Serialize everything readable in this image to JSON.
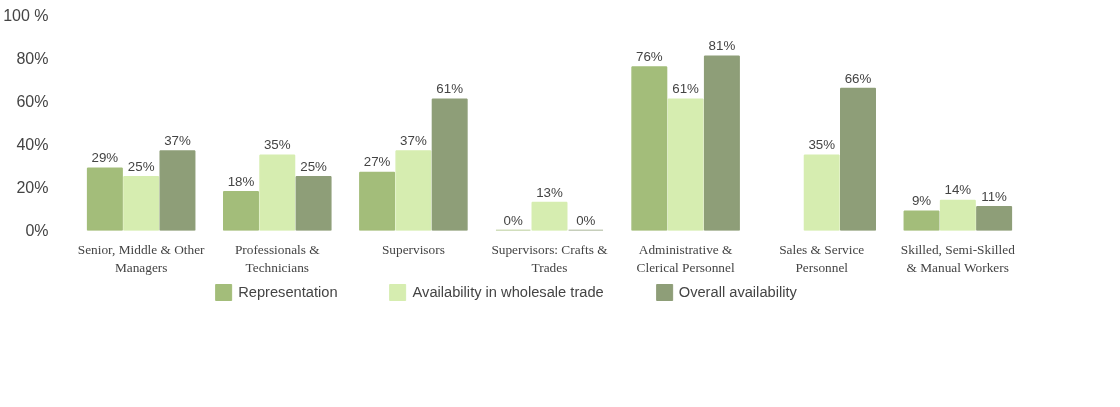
{
  "chart_data": {
    "type": "bar",
    "categories": [
      "Senior, Middle & Other Managers",
      "Professionals & Technicians",
      "Supervisors",
      "Supervisors: Crafts & Trades",
      "Administrative & Clerical Personnel",
      "Sales & Service Personnel",
      "Skilled, Semi-Skilled & Manual Workers"
    ],
    "series": [
      {
        "name": "Representation",
        "color": "#a3bd7a",
        "values": [
          29,
          18,
          27,
          0,
          76,
          null,
          9
        ],
        "value_labels": [
          "29%",
          "18%",
          "27%",
          "0%",
          "76%",
          null,
          "9%"
        ]
      },
      {
        "name": "Availability in wholesale trade",
        "color": "#d6edb0",
        "values": [
          25,
          35,
          37,
          13,
          61,
          35,
          14
        ],
        "value_labels": [
          "25%",
          "35%",
          "37%",
          "13%",
          "61%",
          "35%",
          "14%"
        ]
      },
      {
        "name": "Overall availability",
        "color": "#8e9e78",
        "values": [
          37,
          25,
          61,
          0,
          81,
          66,
          11
        ],
        "value_labels": [
          "37%",
          "25%",
          "61%",
          "0%",
          "81%",
          "66%",
          "11%"
        ]
      }
    ],
    "ylim": [
      0,
      100
    ],
    "yticks": [
      {
        "value": 0,
        "label": "0%"
      },
      {
        "value": 20,
        "label": "20%"
      },
      {
        "value": 40,
        "label": "40%"
      },
      {
        "value": 60,
        "label": "60%"
      },
      {
        "value": 80,
        "label": "80%"
      },
      {
        "value": 100,
        "label": "100 %"
      }
    ],
    "grid": false,
    "legend": "bottom"
  }
}
